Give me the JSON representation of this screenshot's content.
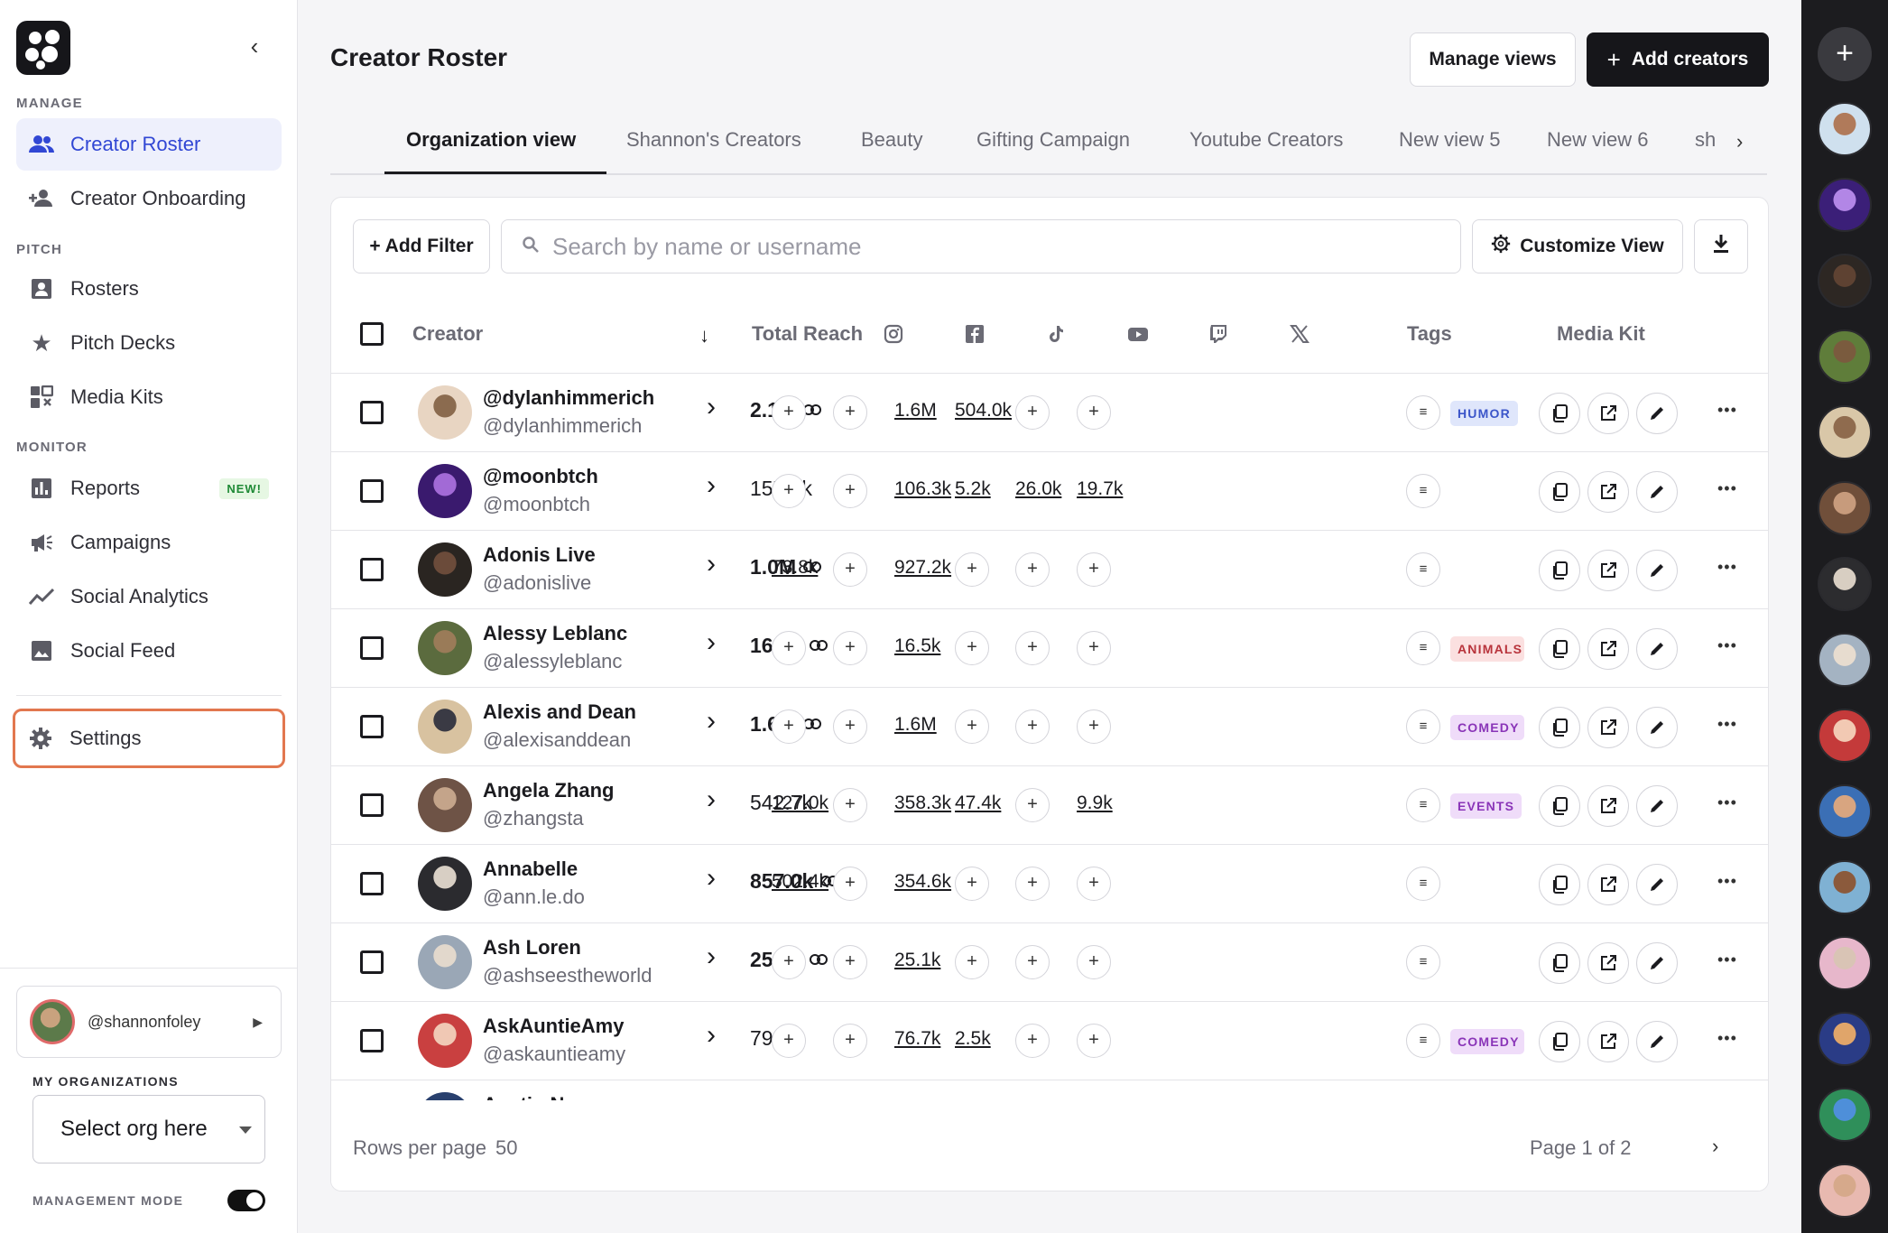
{
  "sidebar": {
    "sections": {
      "manage": "MANAGE",
      "pitch": "PITCH",
      "monitor": "MONITOR"
    },
    "items": {
      "creator_roster": "Creator Roster",
      "creator_onboarding": "Creator Onboarding",
      "rosters": "Rosters",
      "pitch_decks": "Pitch Decks",
      "media_kits": "Media Kits",
      "reports": "Reports",
      "reports_badge": "NEW!",
      "campaigns": "Campaigns",
      "social_analytics": "Social Analytics",
      "social_feed": "Social Feed",
      "settings": "Settings"
    },
    "user": "@shannonfoley",
    "org_label": "MY ORGANIZATIONS",
    "org_select": "Select org here",
    "mgmt_label": "MANAGEMENT MODE"
  },
  "header": {
    "title": "Creator Roster",
    "manage_views": "Manage views",
    "add_creators": "Add creators"
  },
  "tabs": [
    "Organization view",
    "Shannon's Creators",
    "Beauty",
    "Gifting Campaign",
    "Youtube Creators",
    "New view 5",
    "New view 6",
    "sh"
  ],
  "toolbar": {
    "add_filter": "+ Add Filter",
    "search_placeholder": "Search by name or username",
    "customize_view": "Customize View"
  },
  "table": {
    "headers": {
      "creator": "Creator",
      "total_reach": "Total Reach",
      "tags": "Tags",
      "media_kit": "Media Kit"
    },
    "rows": [
      {
        "name": "@dylanhimmerich",
        "user": "@dylanhimmerich",
        "reach": "2.1M",
        "bold": true,
        "ig": "",
        "fb": "",
        "tt": "1.6M",
        "yt": "504.0k",
        "tw": "",
        "x": "",
        "tags": [
          {
            "t": "HUMOR",
            "bg": "#dfe6fb",
            "fg": "#3b55c9"
          }
        ]
      },
      {
        "name": "@moonbtch",
        "user": "@moonbtch",
        "reach": "157.2k",
        "bold": false,
        "ig": "",
        "fb": "",
        "tt": "106.3k",
        "yt": "5.2k",
        "tw": "26.0k",
        "x": "19.7k",
        "tags": []
      },
      {
        "name": "Adonis Live",
        "user": "@adonislive",
        "reach": "1.0M",
        "bold": true,
        "ig": "73.8k",
        "fb": "",
        "tt": "927.2k",
        "yt": "",
        "tw": "",
        "x": "",
        "tags": []
      },
      {
        "name": "Alessy Leblanc",
        "user": "@alessyleblanc",
        "reach": "16.5k",
        "bold": true,
        "ig": "",
        "fb": "",
        "tt": "16.5k",
        "yt": "",
        "tw": "",
        "x": "",
        "tags": [
          {
            "t": "ANIMALS",
            "bg": "#fbe0e0",
            "fg": "#b8333b"
          }
        ]
      },
      {
        "name": "Alexis and Dean",
        "user": "@alexisanddean",
        "reach": "1.6M",
        "bold": true,
        "ig": "",
        "fb": "",
        "tt": "1.6M",
        "yt": "",
        "tw": "",
        "x": "",
        "tags": [
          {
            "t": "COMEDY",
            "bg": "#efdcf9",
            "fg": "#8a35b8"
          }
        ]
      },
      {
        "name": "Angela Zhang",
        "user": "@zhangsta",
        "reach": "542.7k",
        "bold": false,
        "ig": "127.0k",
        "fb": "",
        "tt": "358.3k",
        "yt": "47.4k",
        "tw": "",
        "x": "9.9k",
        "tags": [
          {
            "t": "EVENTS",
            "bg": "#efdcf9",
            "fg": "#8a35b8"
          }
        ]
      },
      {
        "name": "Annabelle",
        "user": "@ann.le.do",
        "reach": "857.0k",
        "bold": true,
        "ig": "502.4k",
        "fb": "",
        "tt": "354.6k",
        "yt": "",
        "tw": "",
        "x": "",
        "tags": []
      },
      {
        "name": "Ash Loren",
        "user": "@ashseestheworld",
        "reach": "25.1k",
        "bold": true,
        "ig": "",
        "fb": "",
        "tt": "25.1k",
        "yt": "",
        "tw": "",
        "x": "",
        "tags": []
      },
      {
        "name": "AskAuntieAmy",
        "user": "@askauntieamy",
        "reach": "79.3k",
        "bold": false,
        "ig": "",
        "fb": "",
        "tt": "76.7k",
        "yt": "2.5k",
        "tw": "",
        "x": "",
        "tags": [
          {
            "t": "COMEDY",
            "bg": "#efdcf9",
            "fg": "#8a35b8"
          }
        ]
      },
      {
        "name": "Austin Nasso",
        "user": "",
        "reach": "",
        "bold": false,
        "ig": "",
        "fb": "",
        "tt": "",
        "yt": "",
        "tw": "",
        "x": "",
        "tags": []
      }
    ]
  },
  "footer": {
    "rows_per_page_label": "Rows per page",
    "rows_per_page_value": "50",
    "page": "Page 1 of 2"
  }
}
